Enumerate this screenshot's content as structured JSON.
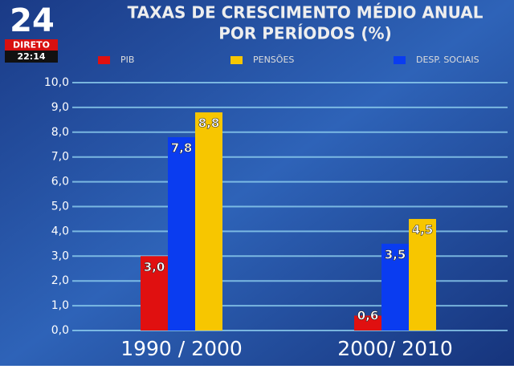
{
  "channel": {
    "logo": "24",
    "status": "DIRETO",
    "time": "22:14"
  },
  "chart_data": {
    "type": "bar",
    "title": [
      "TAXAS DE CRESCIMENTO MÉDIO ANUAL",
      "POR PERÍODOS (%)"
    ],
    "categories": [
      "1990 / 2000",
      "2000/ 2010"
    ],
    "series": [
      {
        "name": "PIB",
        "color": "#e01010",
        "values": [
          3.0,
          0.6
        ],
        "value_labels": [
          "3,0",
          "0,6"
        ]
      },
      {
        "name": "PENSÕES",
        "color": "#f7c600",
        "values": [
          8.8,
          4.5
        ],
        "value_labels": [
          "8,8",
          "4,5"
        ]
      },
      {
        "name": "DESP. SOCIAIS",
        "color": "#0a3cf0",
        "values": [
          7.8,
          3.5
        ],
        "value_labels": [
          "7,8",
          "3,5"
        ]
      }
    ],
    "ylim": [
      0,
      10
    ],
    "yticks": [
      {
        "value": 0,
        "label": "0,0"
      },
      {
        "value": 1,
        "label": "1,0"
      },
      {
        "value": 2,
        "label": "2,0"
      },
      {
        "value": 3,
        "label": "3,0"
      },
      {
        "value": 4,
        "label": "4,0"
      },
      {
        "value": 5,
        "label": "5,0"
      },
      {
        "value": 6,
        "label": "6,0"
      },
      {
        "value": 7,
        "label": "7,0"
      },
      {
        "value": 8,
        "label": "8,0"
      },
      {
        "value": 9,
        "label": "9,0"
      },
      {
        "value": 10,
        "label": "10,0"
      }
    ],
    "grid": true
  }
}
